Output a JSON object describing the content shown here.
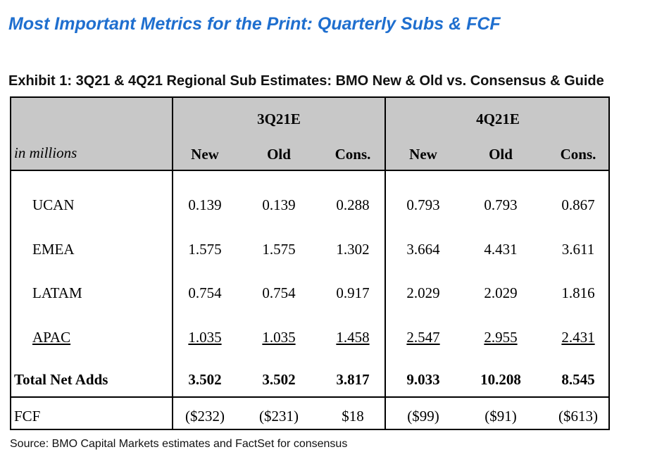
{
  "title": "Most Important Metrics for the Print: Quarterly Subs & FCF",
  "exhibit_title": "Exhibit 1: 3Q21 & 4Q21 Regional Sub Estimates: BMO New & Old vs. Consensus & Guide",
  "table": {
    "unit_label": "in millions",
    "groups": [
      "3Q21E",
      "4Q21E"
    ],
    "columns": [
      "New",
      "Old",
      "Cons.",
      "New",
      "Old",
      "Cons."
    ],
    "rows": [
      {
        "label": "UCAN",
        "values": [
          "0.139",
          "0.139",
          "0.288",
          "0.793",
          "0.793",
          "0.867"
        ]
      },
      {
        "label": "EMEA",
        "values": [
          "1.575",
          "1.575",
          "1.302",
          "3.664",
          "4.431",
          "3.611"
        ]
      },
      {
        "label": "LATAM",
        "values": [
          "0.754",
          "0.754",
          "0.917",
          "2.029",
          "2.029",
          "1.816"
        ]
      },
      {
        "label": "APAC",
        "values": [
          "1.035",
          "1.035",
          "1.458",
          "2.547",
          "2.955",
          "2.431"
        ]
      }
    ],
    "total": {
      "label": "Total Net Adds",
      "values": [
        "3.502",
        "3.502",
        "3.817",
        "9.033",
        "10.208",
        "8.545"
      ]
    },
    "fcf": {
      "label": "FCF",
      "values": [
        "($232)",
        "($231)",
        "$18",
        "($99)",
        "($91)",
        "($613)"
      ]
    }
  },
  "source": "Source: BMO Capital Markets estimates and FactSet for consensus"
}
